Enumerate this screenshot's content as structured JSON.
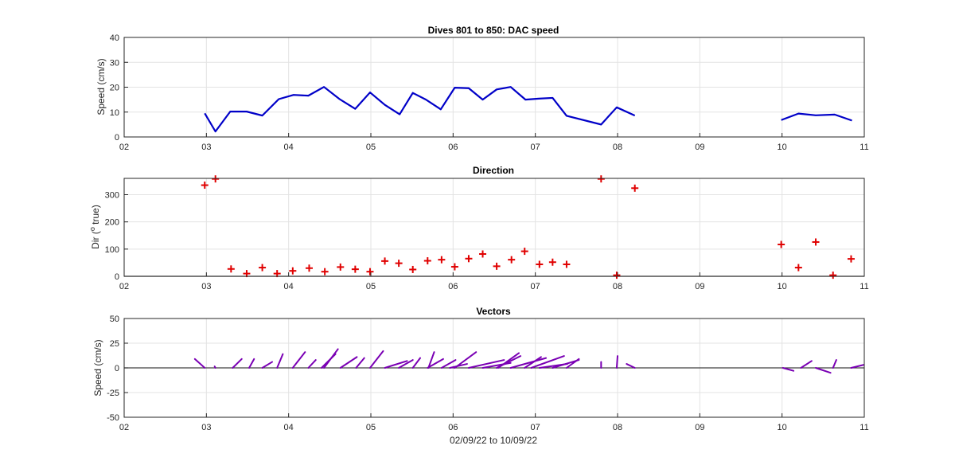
{
  "figure": {
    "xlabel": "02/09/22 to 10/09/22"
  },
  "colors": {
    "speed": "#0000c8",
    "direction": "#e00000",
    "vectors": "#7a00b4",
    "axes": "#262626",
    "grid": "#e3e3e3",
    "zero_line": "#404040"
  },
  "chart_data": [
    {
      "type": "line",
      "title": "Dives 801 to 850: DAC speed",
      "ylabel": "Speed (cm/s)",
      "xlim": [
        2,
        11
      ],
      "ylim": [
        0,
        40
      ],
      "xticks": [
        2,
        3,
        4,
        5,
        6,
        7,
        8,
        9,
        10,
        11
      ],
      "xtick_labels": [
        "02",
        "03",
        "04",
        "05",
        "06",
        "07",
        "08",
        "09",
        "10",
        "11"
      ],
      "yticks": [
        0,
        10,
        20,
        30,
        40
      ],
      "ytick_labels": [
        "0",
        "10",
        "20",
        "30",
        "40"
      ],
      "grid": true,
      "series": [
        {
          "x": [
            2.98,
            3.11,
            3.29,
            3.49,
            3.68,
            3.88,
            4.06,
            4.24,
            4.43,
            4.62,
            4.81,
            4.99,
            5.17,
            5.35,
            5.51,
            5.67,
            5.85,
            6.02,
            6.19,
            6.36,
            6.53,
            6.7,
            6.88,
            7.04,
            7.21,
            7.38,
            7.8,
            7.99,
            8.21
          ],
          "y": [
            9.5,
            2.2,
            10.2,
            10.2,
            8.6,
            15.2,
            16.9,
            16.6,
            20.1,
            15.2,
            11.3,
            17.9,
            12.9,
            9.1,
            17.7,
            15.0,
            11.1,
            19.8,
            19.6,
            15.0,
            19.1,
            20.1,
            15.0,
            15.4,
            15.7,
            8.5,
            5.0,
            11.9,
            8.6
          ]
        },
        {
          "x": [
            9.99,
            10.2,
            10.41,
            10.64,
            10.85
          ],
          "y": [
            6.8,
            9.4,
            8.7,
            9.0,
            6.6
          ]
        }
      ]
    },
    {
      "type": "scatter",
      "title": "Direction",
      "ylabel_prefix": "Dir (",
      "ylabel_sup": "o",
      "ylabel_suffix": " true)",
      "xlim": [
        2,
        11
      ],
      "ylim": [
        0,
        360
      ],
      "xticks": [
        2,
        3,
        4,
        5,
        6,
        7,
        8,
        9,
        10,
        11
      ],
      "xtick_labels": [
        "02",
        "03",
        "04",
        "05",
        "06",
        "07",
        "08",
        "09",
        "10",
        "11"
      ],
      "yticks": [
        0,
        100,
        200,
        300
      ],
      "ytick_labels": [
        "0",
        "100",
        "200",
        "300"
      ],
      "grid": true,
      "marker": "+",
      "points": [
        [
          2.98,
          335
        ],
        [
          3.11,
          358
        ],
        [
          3.3,
          27
        ],
        [
          3.49,
          10
        ],
        [
          3.68,
          32
        ],
        [
          3.86,
          10
        ],
        [
          4.05,
          20
        ],
        [
          4.25,
          30
        ],
        [
          4.44,
          17
        ],
        [
          4.63,
          34
        ],
        [
          4.81,
          26
        ],
        [
          4.99,
          17
        ],
        [
          5.17,
          56
        ],
        [
          5.34,
          48
        ],
        [
          5.51,
          25
        ],
        [
          5.69,
          57
        ],
        [
          5.86,
          61
        ],
        [
          6.02,
          35
        ],
        [
          6.19,
          65
        ],
        [
          6.36,
          82
        ],
        [
          6.53,
          37
        ],
        [
          6.71,
          61
        ],
        [
          6.87,
          92
        ],
        [
          7.05,
          44
        ],
        [
          7.21,
          52
        ],
        [
          7.38,
          44
        ],
        [
          7.8,
          358
        ],
        [
          7.99,
          4
        ],
        [
          8.21,
          324
        ],
        [
          9.99,
          117
        ],
        [
          10.2,
          32
        ],
        [
          10.41,
          126
        ],
        [
          10.62,
          4
        ],
        [
          10.84,
          64
        ]
      ]
    },
    {
      "type": "vector",
      "title": "Vectors",
      "ylabel": "Speed (cm/s)",
      "xlim": [
        2,
        11
      ],
      "ylim": [
        -50,
        50
      ],
      "xticks": [
        2,
        3,
        4,
        5,
        6,
        7,
        8,
        9,
        10,
        11
      ],
      "xtick_labels": [
        "02",
        "03",
        "04",
        "05",
        "06",
        "07",
        "08",
        "09",
        "10",
        "11"
      ],
      "yticks": [
        -50,
        -25,
        0,
        25,
        50
      ],
      "ytick_labels": [
        "-50",
        "-25",
        "0",
        "25",
        "50"
      ],
      "grid": true,
      "vectors": [
        [
          2.86,
          9.0,
          2.98,
          0
        ],
        [
          3.1,
          1.5,
          3.11,
          0
        ],
        [
          3.32,
          0,
          3.43,
          9.0
        ],
        [
          3.52,
          0,
          3.58,
          9.0
        ],
        [
          3.68,
          0,
          3.8,
          6.0
        ],
        [
          3.86,
          0,
          3.93,
          14.0
        ],
        [
          4.05,
          0,
          4.2,
          16.0
        ],
        [
          4.24,
          0,
          4.33,
          8.0
        ],
        [
          4.4,
          0,
          4.57,
          14.0
        ],
        [
          4.43,
          0,
          4.6,
          19.0
        ],
        [
          4.63,
          0,
          4.83,
          11.0
        ],
        [
          4.82,
          0,
          4.92,
          10.0
        ],
        [
          4.99,
          0,
          5.15,
          17.0
        ],
        [
          5.17,
          0,
          5.44,
          7.0
        ],
        [
          5.34,
          0,
          5.51,
          8.0
        ],
        [
          5.51,
          0,
          5.6,
          10.0
        ],
        [
          5.7,
          0,
          5.77,
          16.0
        ],
        [
          5.69,
          0,
          5.88,
          9.0
        ],
        [
          5.86,
          0,
          6.03,
          8.0
        ],
        [
          5.96,
          0,
          6.17,
          4.0
        ],
        [
          6.02,
          0,
          6.28,
          16.0
        ],
        [
          6.19,
          0,
          6.62,
          8.0
        ],
        [
          6.36,
          0,
          6.7,
          5.0
        ],
        [
          6.53,
          0,
          6.82,
          12.0
        ],
        [
          6.55,
          0,
          6.8,
          15.0
        ],
        [
          6.7,
          0,
          7.13,
          10.0
        ],
        [
          6.87,
          0,
          7.07,
          11.0
        ],
        [
          6.95,
          0,
          7.35,
          12.0
        ],
        [
          7.05,
          0,
          7.39,
          4.0
        ],
        [
          7.21,
          0,
          7.53,
          8.0
        ],
        [
          7.38,
          0,
          7.53,
          9.0
        ],
        [
          7.8,
          0,
          7.8,
          6.0
        ],
        [
          7.99,
          0,
          8.0,
          12.0
        ],
        [
          8.11,
          4.0,
          8.21,
          0
        ],
        [
          10.01,
          0,
          10.14,
          -3.0
        ],
        [
          10.23,
          0,
          10.36,
          7.0
        ],
        [
          10.41,
          0,
          10.59,
          -5.0
        ],
        [
          10.62,
          0,
          10.66,
          8.0
        ],
        [
          10.84,
          0,
          10.99,
          3.0
        ]
      ]
    }
  ]
}
